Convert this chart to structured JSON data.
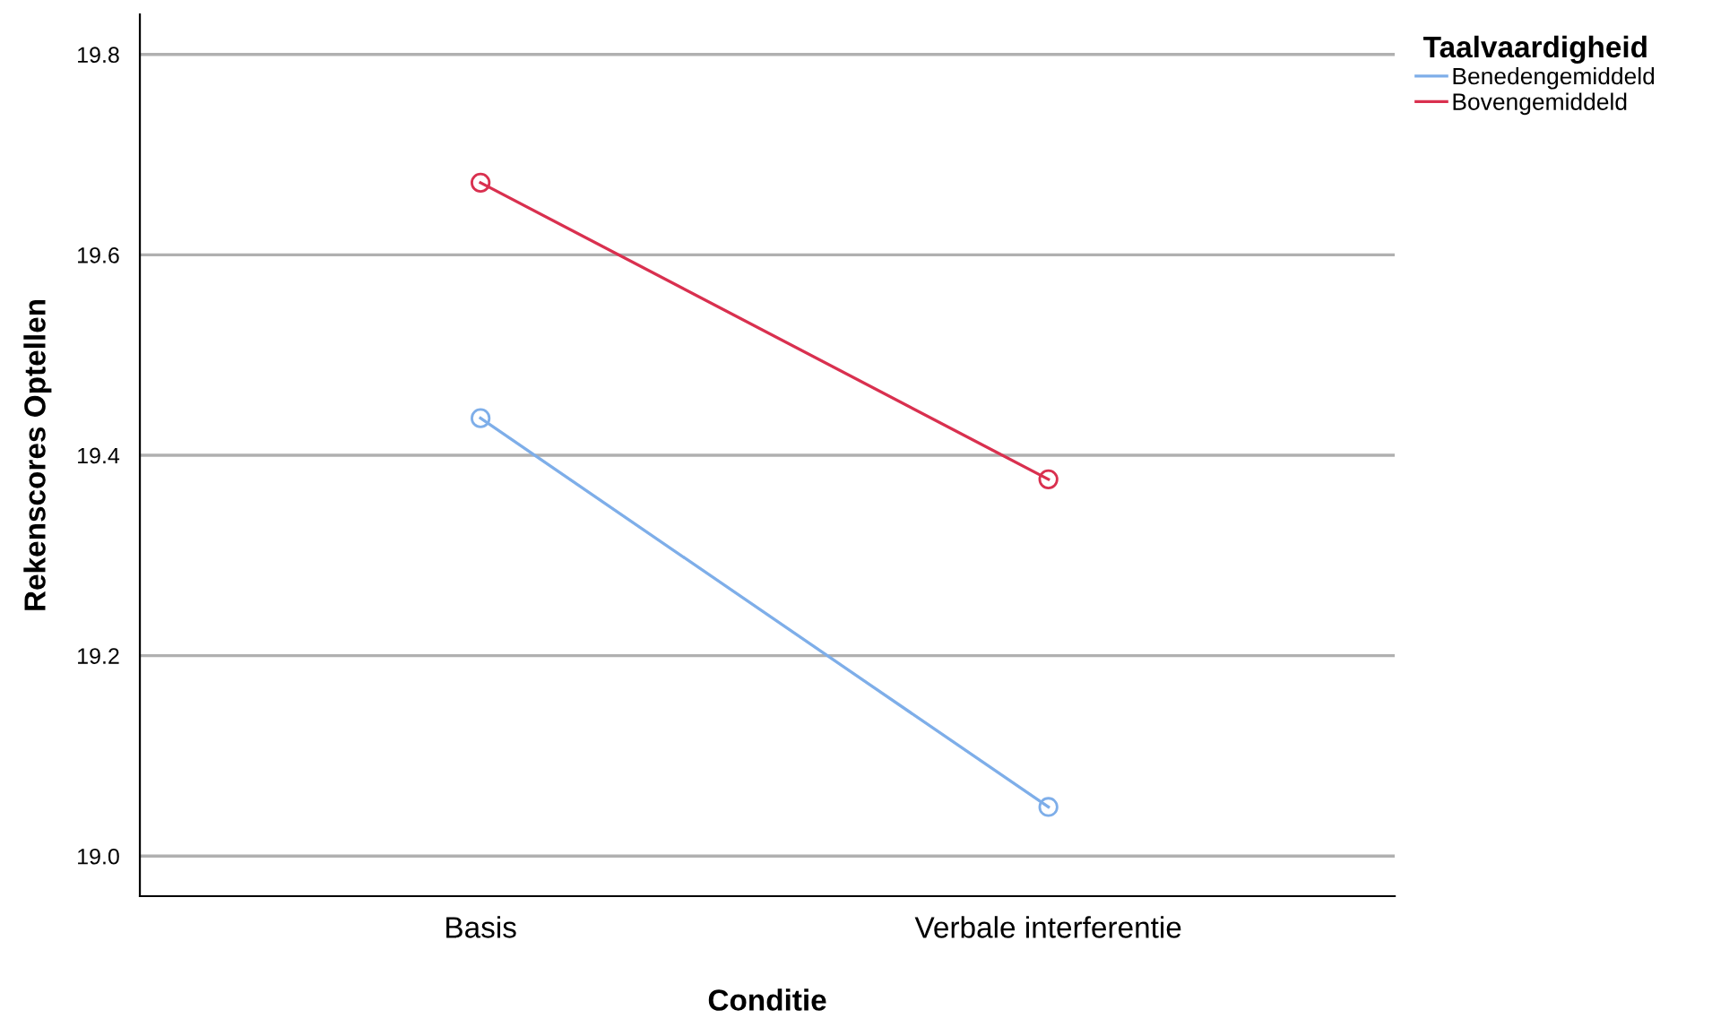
{
  "chart_data": {
    "type": "line",
    "xlabel": "Conditie",
    "ylabel": "Rekenscores Optellen",
    "legend_title": "Taalvaardigheid",
    "categories": [
      "Basis",
      "Verbale interferentie"
    ],
    "series": [
      {
        "name": "Benedengemiddeld",
        "color": "#7eaee9",
        "values": [
          19.437,
          19.049
        ]
      },
      {
        "name": "Bovengemiddeld",
        "color": "#d9304f",
        "values": [
          19.672,
          19.376
        ]
      }
    ],
    "ylim": [
      18.96,
      19.84
    ],
    "yticks": [
      {
        "value": 19.0,
        "label": "19.0"
      },
      {
        "value": 19.2,
        "label": "19.2"
      },
      {
        "value": 19.4,
        "label": "19.4"
      },
      {
        "value": 19.6,
        "label": "19.6"
      },
      {
        "value": 19.8,
        "label": "19.8"
      }
    ],
    "grid": "y",
    "legend": "top right",
    "marker": "circle",
    "line_style": "solid"
  }
}
